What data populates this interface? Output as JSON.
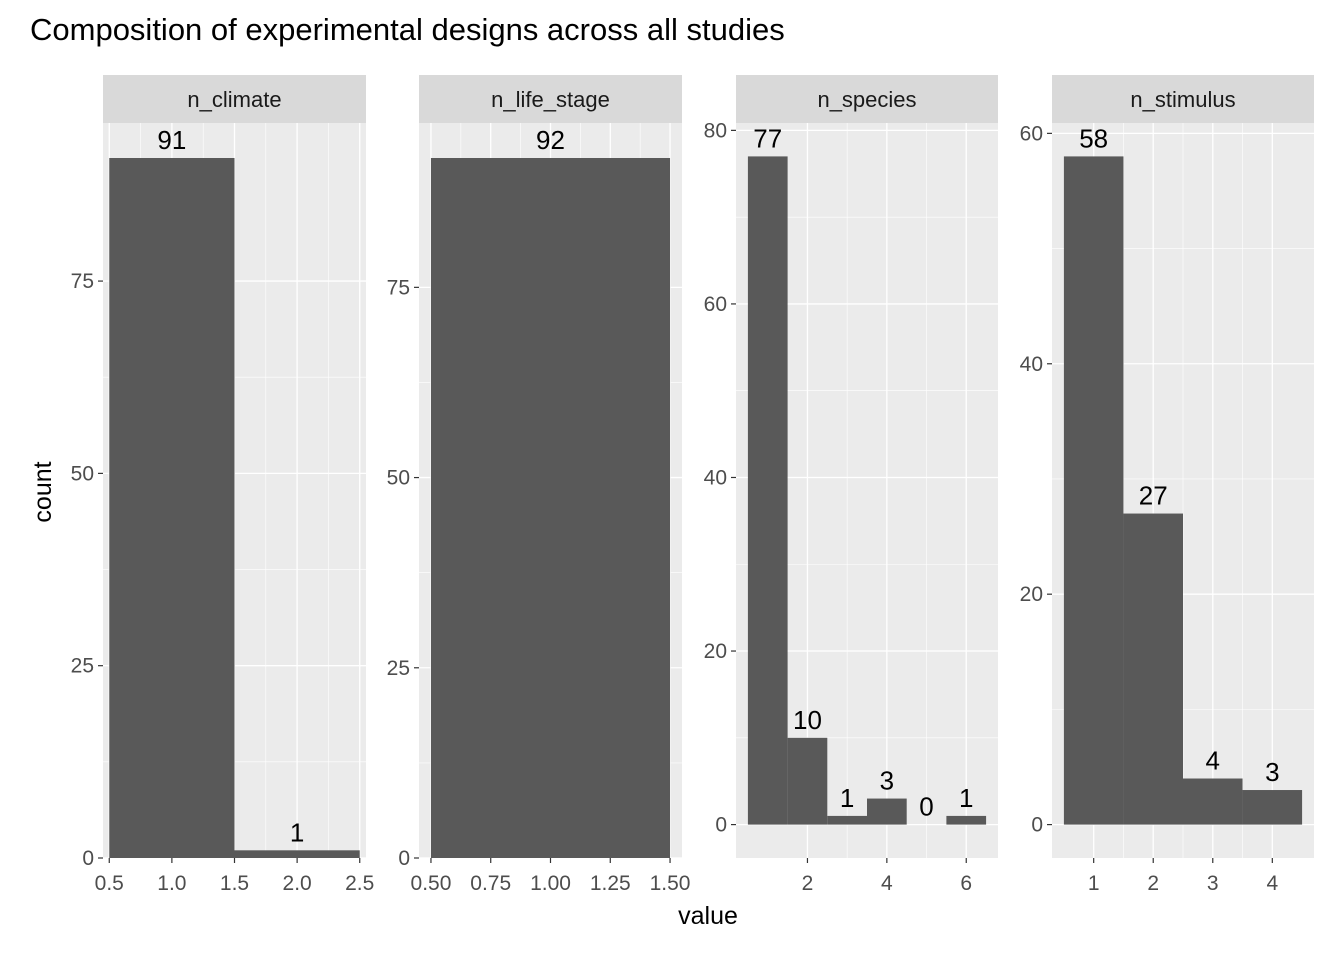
{
  "chart_data": {
    "type": "bar",
    "title": "Composition of experimental designs across all studies",
    "xlabel": "value",
    "ylabel": "count",
    "grid": true,
    "colors": {
      "bar": "#595959",
      "panel": "#ebebeb",
      "strip": "#d9d9d9",
      "grid_major": "#ffffff",
      "tick": "#333333"
    },
    "facets": [
      {
        "name": "n_climate",
        "x_range": [
          0.45,
          2.55
        ],
        "y_range": [
          0,
          95.55
        ],
        "x_ticks": [
          {
            "v": 0.5,
            "label": "0.5"
          },
          {
            "v": 1.0,
            "label": "1.0"
          },
          {
            "v": 1.5,
            "label": "1.5"
          },
          {
            "v": 2.0,
            "label": "2.0"
          },
          {
            "v": 2.5,
            "label": "2.5"
          }
        ],
        "y_ticks": [
          {
            "v": 0,
            "label": "0"
          },
          {
            "v": 25,
            "label": "25"
          },
          {
            "v": 50,
            "label": "50"
          },
          {
            "v": 75,
            "label": "75"
          }
        ],
        "bars": [
          {
            "x": 1,
            "width": 1,
            "value": 91,
            "label": "91"
          },
          {
            "x": 2,
            "width": 1,
            "value": 1,
            "label": "1"
          }
        ]
      },
      {
        "name": "n_life_stage",
        "x_range": [
          0.45,
          1.55
        ],
        "y_range": [
          0,
          96.6
        ],
        "x_ticks": [
          {
            "v": 0.5,
            "label": "0.50"
          },
          {
            "v": 0.75,
            "label": "0.75"
          },
          {
            "v": 1.0,
            "label": "1.00"
          },
          {
            "v": 1.25,
            "label": "1.25"
          },
          {
            "v": 1.5,
            "label": "1.50"
          }
        ],
        "y_ticks": [
          {
            "v": 0,
            "label": "0"
          },
          {
            "v": 25,
            "label": "25"
          },
          {
            "v": 50,
            "label": "50"
          },
          {
            "v": 75,
            "label": "75"
          }
        ],
        "bars": [
          {
            "x": 1,
            "width": 1,
            "value": 92,
            "label": "92"
          }
        ]
      },
      {
        "name": "n_species",
        "x_range": [
          0.2,
          6.8
        ],
        "y_range": [
          -3.85,
          80.85
        ],
        "x_ticks": [
          {
            "v": 2,
            "label": "2"
          },
          {
            "v": 4,
            "label": "4"
          },
          {
            "v": 6,
            "label": "6"
          }
        ],
        "y_ticks": [
          {
            "v": 0,
            "label": "0"
          },
          {
            "v": 20,
            "label": "20"
          },
          {
            "v": 40,
            "label": "40"
          },
          {
            "v": 60,
            "label": "60"
          },
          {
            "v": 80,
            "label": "80"
          }
        ],
        "bars": [
          {
            "x": 1,
            "width": 1,
            "value": 77,
            "label": "77"
          },
          {
            "x": 2,
            "width": 1,
            "value": 10,
            "label": "10"
          },
          {
            "x": 3,
            "width": 1,
            "value": 1,
            "label": "1"
          },
          {
            "x": 4,
            "width": 1,
            "value": 3,
            "label": "3"
          },
          {
            "x": 5,
            "width": 1,
            "value": 0,
            "label": "0"
          },
          {
            "x": 6,
            "width": 1,
            "value": 1,
            "label": "1"
          }
        ]
      },
      {
        "name": "n_stimulus",
        "x_range": [
          0.3,
          4.7
        ],
        "y_range": [
          -2.9,
          60.9
        ],
        "x_ticks": [
          {
            "v": 1,
            "label": "1"
          },
          {
            "v": 2,
            "label": "2"
          },
          {
            "v": 3,
            "label": "3"
          },
          {
            "v": 4,
            "label": "4"
          }
        ],
        "y_ticks": [
          {
            "v": 0,
            "label": "0"
          },
          {
            "v": 20,
            "label": "20"
          },
          {
            "v": 40,
            "label": "40"
          },
          {
            "v": 60,
            "label": "60"
          }
        ],
        "bars": [
          {
            "x": 1,
            "width": 1,
            "value": 58,
            "label": "58"
          },
          {
            "x": 2,
            "width": 1,
            "value": 27,
            "label": "27"
          },
          {
            "x": 3,
            "width": 1,
            "value": 4,
            "label": "4"
          },
          {
            "x": 4,
            "width": 1,
            "value": 3,
            "label": "3"
          }
        ]
      }
    ]
  }
}
